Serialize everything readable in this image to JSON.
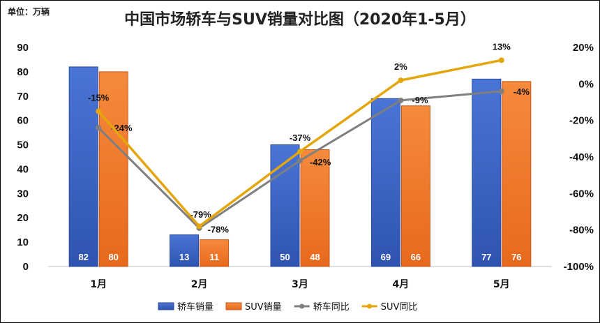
{
  "chart_data": {
    "type": "bar",
    "title": "中国市场轿车与SUV销量对比图（2020年1-5月）",
    "unit_label": "单位：万辆",
    "categories": [
      "1月",
      "2月",
      "3月",
      "4月",
      "5月"
    ],
    "y_left": {
      "min": 0,
      "max": 90,
      "ticks": [
        "0",
        "10",
        "20",
        "30",
        "40",
        "50",
        "60",
        "70",
        "80",
        "90"
      ]
    },
    "y_right": {
      "min": -100,
      "max": 20,
      "ticks": [
        "-100%",
        "-80%",
        "-60%",
        "-40%",
        "-20%",
        "0%",
        "20%"
      ]
    },
    "grid": false,
    "legend_position": "bottom",
    "bar_series": [
      {
        "name": "轿车销量",
        "values": [
          82,
          13,
          50,
          69,
          77
        ],
        "labels": [
          "82",
          "13",
          "50",
          "69",
          "77"
        ],
        "color": "#3a62c6"
      },
      {
        "name": "SUV销量",
        "values": [
          80,
          11,
          48,
          66,
          76
        ],
        "labels": [
          "80",
          "11",
          "48",
          "66",
          "76"
        ],
        "color": "#ef7a2c"
      }
    ],
    "line_series": [
      {
        "name": "轿车同比",
        "values": [
          -24,
          -79,
          -42,
          -9,
          -4
        ],
        "labels": [
          "-24%",
          "-79%",
          "-42%",
          "-9%",
          "-4%"
        ],
        "color": "#7f7f7f"
      },
      {
        "name": "SUV同比",
        "values": [
          -15,
          -78,
          -37,
          2,
          13
        ],
        "labels": [
          "-15%",
          "-78%",
          "-37%",
          "2%",
          "13%"
        ],
        "color": "#e3a60c"
      }
    ]
  }
}
